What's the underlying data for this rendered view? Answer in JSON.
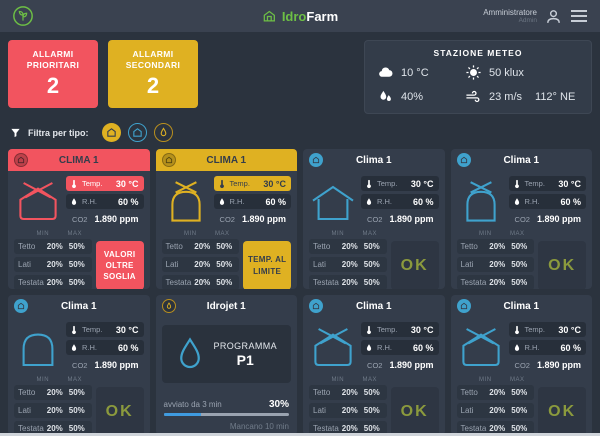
{
  "colors": {
    "red": "#f2545f",
    "yellow": "#dfb122",
    "teal": "#3fa2cd",
    "green": "#6dbf45",
    "ok": "#8b9a3d",
    "progress_blue": "#3f9be0"
  },
  "header": {
    "brand_first": "Idro",
    "brand_second": "Farm",
    "user_name": "Amministratore",
    "user_role": "Admin"
  },
  "alarms": [
    {
      "label": "ALLARMI\nPRIORITARI",
      "count": "2",
      "type": "priority"
    },
    {
      "label": "ALLARMI\nSECONDARI",
      "count": "2",
      "type": "secondary"
    }
  ],
  "weather": {
    "title": "STAZIONE METEO",
    "temperature": "10 °C",
    "light": "50 klux",
    "humidity": "40%",
    "wind_speed": "23 m/s",
    "wind_direction": "112° NE"
  },
  "filter": {
    "label": "Filtra per tipo:"
  },
  "labels": {
    "temp": "Temp.",
    "rh": "R.H.",
    "co2": "CO2",
    "min": "MIN",
    "max": "MAX"
  },
  "cards": [
    {
      "type": "clima",
      "title": "CLIMA 1",
      "variant": "red",
      "icon": "gh-x",
      "temp": "30 °C",
      "rh": "60 %",
      "co2": "1.890 ppm",
      "rows": [
        [
          "Tetto",
          "20%",
          "50%"
        ],
        [
          "Lati",
          "20%",
          "50%"
        ],
        [
          "Testata",
          "20%",
          "50%"
        ]
      ],
      "status": "VALORI OLTRE SOGLIA"
    },
    {
      "type": "clima",
      "title": "CLIMA 1",
      "variant": "yellow",
      "icon": "gh-dome-x",
      "temp": "30 °C",
      "rh": "60 %",
      "co2": "1.890 ppm",
      "rows": [
        [
          "Tetto",
          "20%",
          "50%"
        ],
        [
          "Lati",
          "20%",
          "50%"
        ],
        [
          "Testata",
          "20%",
          "50%"
        ]
      ],
      "status": "TEMP. AL LIMITE"
    },
    {
      "type": "clima",
      "title": "Clima 1",
      "variant": "normal",
      "icon": "gh-eaves",
      "temp": "30 °C",
      "rh": "60 %",
      "co2": "1.890 ppm",
      "rows": [
        [
          "Tetto",
          "20%",
          "50%"
        ],
        [
          "Lati",
          "20%",
          "50%"
        ],
        [
          "Testata",
          "20%",
          "50%"
        ]
      ],
      "status": "OK"
    },
    {
      "type": "clima",
      "title": "Clima 1",
      "variant": "normal",
      "icon": "gh-dome-x",
      "temp": "30 °C",
      "rh": "60 %",
      "co2": "1.890 ppm",
      "rows": [
        [
          "Tetto",
          "20%",
          "50%"
        ],
        [
          "Lati",
          "20%",
          "50%"
        ],
        [
          "Testata",
          "20%",
          "50%"
        ]
      ],
      "status": "OK"
    },
    {
      "type": "clima",
      "title": "Clima 1",
      "variant": "normal",
      "icon": "gh-dome",
      "temp": "30 °C",
      "rh": "60 %",
      "co2": "1.890 ppm",
      "rows": [
        [
          "Tetto",
          "20%",
          "50%"
        ],
        [
          "Lati",
          "20%",
          "50%"
        ],
        [
          "Testata",
          "20%",
          "50%"
        ]
      ],
      "status": "OK"
    },
    {
      "type": "idrojet",
      "title": "Idrojet 1",
      "program_label": "PROGRAMMA",
      "program_name": "P1",
      "started": "avviato da 3 min",
      "progress_text": "30%",
      "progress_value": 30,
      "remaining": "Mancano 10 min"
    },
    {
      "type": "clima",
      "title": "Clima 1",
      "variant": "normal",
      "icon": "gh-x",
      "temp": "30 °C",
      "rh": "60 %",
      "co2": "1.890 ppm",
      "rows": [
        [
          "Tetto",
          "20%",
          "50%"
        ],
        [
          "Lati",
          "20%",
          "50%"
        ],
        [
          "Testata",
          "20%",
          "50%"
        ]
      ],
      "status": "OK"
    },
    {
      "type": "clima",
      "title": "Clima 1",
      "variant": "normal",
      "icon": "gh-x",
      "temp": "30 °C",
      "rh": "60 %",
      "co2": "1.890 ppm",
      "rows": [
        [
          "Tetto",
          "20%",
          "50%"
        ],
        [
          "Lati",
          "20%",
          "50%"
        ],
        [
          "Testata",
          "20%",
          "50%"
        ]
      ],
      "status": "OK"
    }
  ]
}
